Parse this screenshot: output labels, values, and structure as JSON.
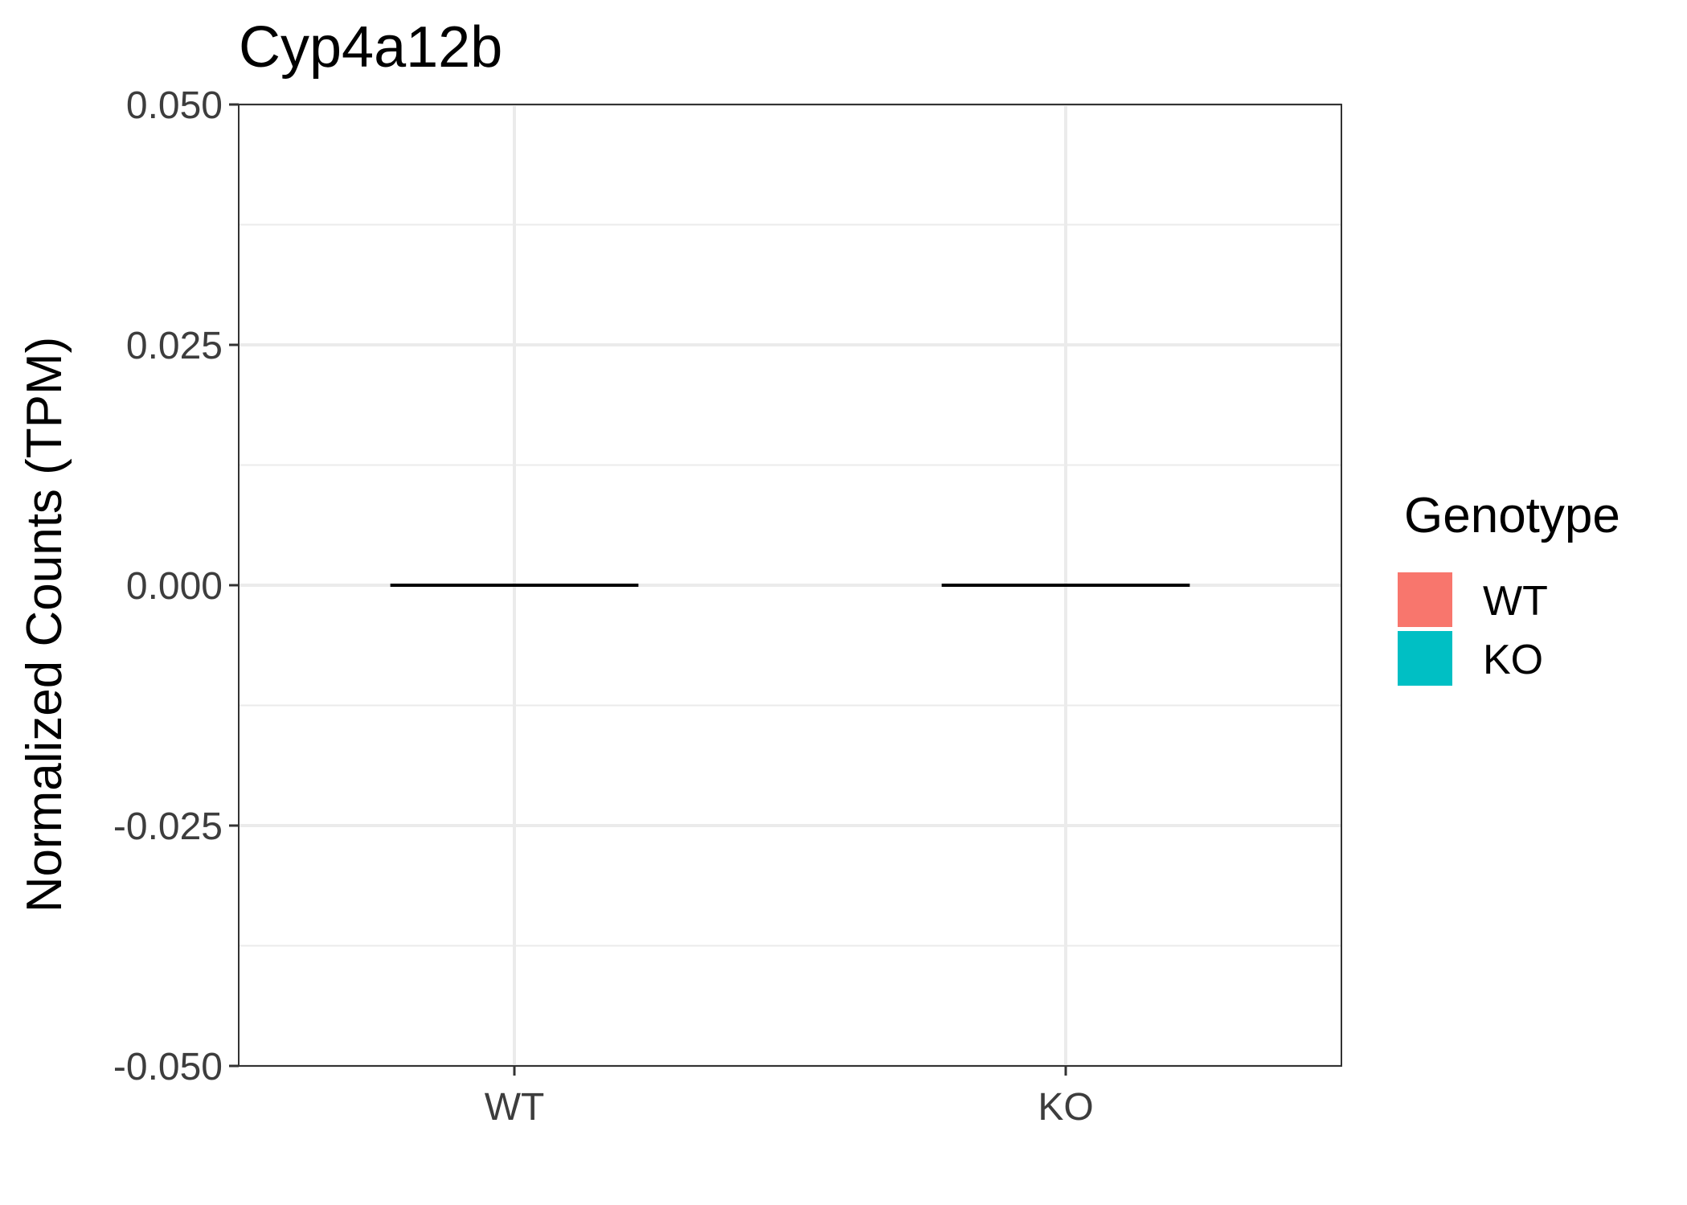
{
  "chart_data": {
    "type": "box",
    "title": "Cyp4a12b",
    "xlabel": "",
    "ylabel": "Normalized Counts (TPM)",
    "categories": [
      "WT",
      "KO"
    ],
    "medians": [
      0.0,
      0.0
    ],
    "ylim": [
      -0.05,
      0.05
    ],
    "yticks": [
      -0.05,
      -0.025,
      0.0,
      0.025,
      0.05
    ],
    "ytick_labels": [
      "-0.050",
      "-0.025",
      "0.000",
      "0.025",
      "0.050"
    ],
    "grid": true,
    "legend": {
      "title": "Genotype",
      "position": "right",
      "entries": [
        {
          "label": "WT",
          "color": "#F8766D"
        },
        {
          "label": "KO",
          "color": "#00BFC4"
        }
      ]
    },
    "colors": {
      "WT": "#F8766D",
      "KO": "#00BFC4",
      "grid": "#EBEBEB",
      "border": "#333333",
      "median": "#000000"
    }
  }
}
